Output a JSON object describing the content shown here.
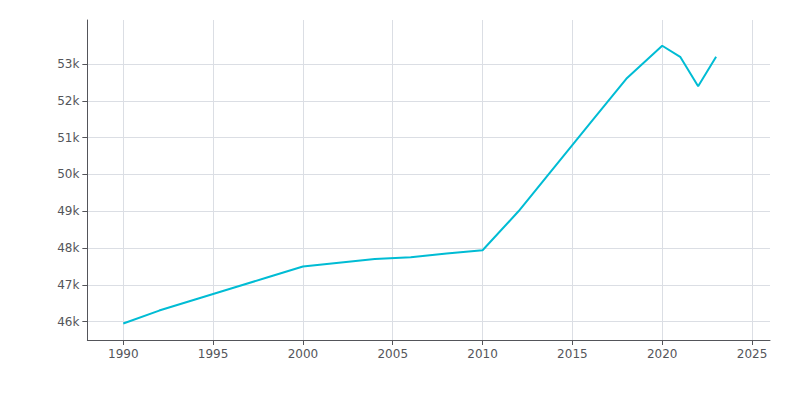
{
  "chart_data": {
    "type": "line",
    "x": [
      1990,
      1992,
      1994,
      1996,
      1998,
      2000,
      2002,
      2004,
      2006,
      2008,
      2010,
      2012,
      2014,
      2016,
      2018,
      2020,
      2021,
      2022,
      2023
    ],
    "values": [
      45949,
      46300,
      46600,
      46900,
      47200,
      47500,
      47600,
      47700,
      47750,
      47850,
      47940,
      49000,
      50200,
      51400,
      52600,
      53500,
      53200,
      52400,
      53200
    ],
    "color": "#00bcd4",
    "xlim": [
      1988,
      2026
    ],
    "ylim": [
      45500,
      54200
    ],
    "xticks": [
      1990,
      1995,
      2000,
      2005,
      2010,
      2015,
      2020,
      2025
    ],
    "yticks": [
      {
        "value": 46000,
        "label": "46k"
      },
      {
        "value": 47000,
        "label": "47k"
      },
      {
        "value": 48000,
        "label": "48k"
      },
      {
        "value": 49000,
        "label": "49k"
      },
      {
        "value": 50000,
        "label": "50k"
      },
      {
        "value": 51000,
        "label": "51k"
      },
      {
        "value": 52000,
        "label": "52k"
      },
      {
        "value": 53000,
        "label": "53k"
      }
    ],
    "grid": true
  }
}
